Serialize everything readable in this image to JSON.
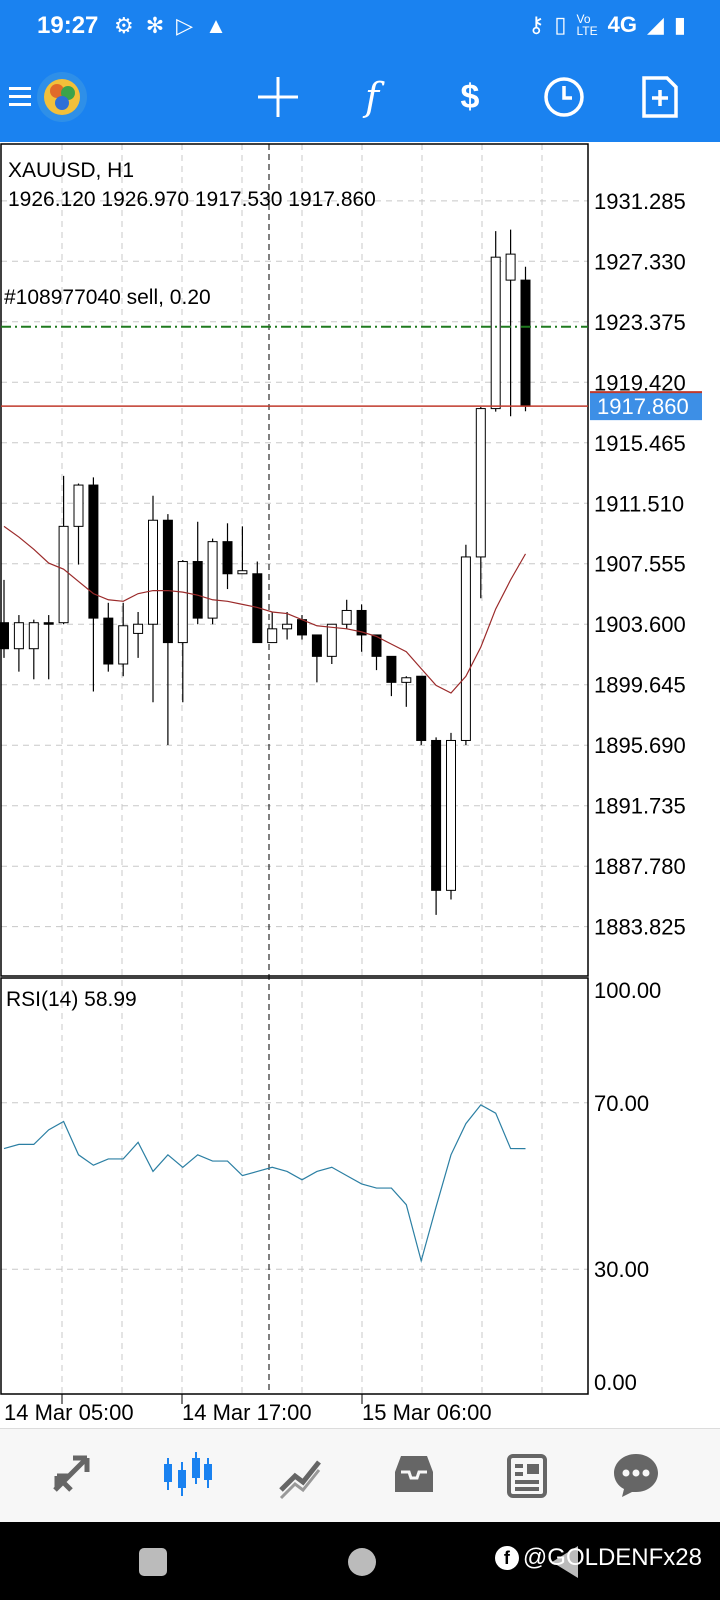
{
  "status_bar": {
    "time": "19:27",
    "network": "4G",
    "left_icons": [
      "gear-icon",
      "settings-icon",
      "play-icon",
      "warning-icon"
    ],
    "right_icons": [
      "key-icon",
      "vibrate-icon",
      "volte-icon",
      "signal-icon",
      "battery-icon"
    ]
  },
  "toolbar": {
    "icons": [
      "menu-icon",
      "app-logo-icon",
      "crosshair-icon",
      "indicators-icon",
      "trade-icon",
      "timeframe-icon",
      "new-order-icon"
    ]
  },
  "chart": {
    "symbol_label": "XAUUSD, H1",
    "ohlc_label": "1926.120 1926.970 1917.530 1917.860",
    "order_label": "#108977040 sell, 0.20",
    "current_price": "1917.860",
    "price_ticks": [
      "1931.285",
      "1927.330",
      "1923.375",
      "1919.420",
      "1915.465",
      "1911.510",
      "1907.555",
      "1903.600",
      "1899.645",
      "1895.690",
      "1891.735",
      "1887.780",
      "1883.825"
    ],
    "rsi_label": "RSI(14) 58.99",
    "rsi_ticks": [
      "100.00",
      "70.00",
      "30.00",
      "0.00"
    ],
    "time_labels": [
      "14 Mar 05:00",
      "14 Mar 17:00",
      "15 Mar 06:00"
    ],
    "colors": {
      "bull_fill": "#ffffff",
      "bear_fill": "#000000",
      "ma_line": "#9b2a2a",
      "rsi_line": "#2b7fa3",
      "order_line": "#1f7a1f",
      "bid_line": "#c0392b",
      "price_tag": "#3d8fe6",
      "grid": "#c8c8c8"
    }
  },
  "chart_data": [
    {
      "type": "candlestick",
      "title": "XAUUSD, H1",
      "ylim": [
        1880.6,
        1935.0
      ],
      "candles": [
        {
          "o": 1903.7,
          "h": 1906.5,
          "l": 1901.4,
          "c": 1902.0
        },
        {
          "o": 1902.0,
          "h": 1904.2,
          "l": 1900.5,
          "c": 1903.7
        },
        {
          "o": 1902.0,
          "h": 1903.9,
          "l": 1900.0,
          "c": 1903.7
        },
        {
          "o": 1903.7,
          "h": 1904.2,
          "l": 1900.0,
          "c": 1903.6
        },
        {
          "o": 1903.7,
          "h": 1913.3,
          "l": 1903.6,
          "c": 1910.0
        },
        {
          "o": 1910.0,
          "h": 1912.8,
          "l": 1907.5,
          "c": 1912.7
        },
        {
          "o": 1912.7,
          "h": 1913.2,
          "l": 1899.2,
          "c": 1904.0
        },
        {
          "o": 1904.0,
          "h": 1905.0,
          "l": 1900.5,
          "c": 1901.0
        },
        {
          "o": 1901.0,
          "h": 1905.0,
          "l": 1900.2,
          "c": 1903.5
        },
        {
          "o": 1903.0,
          "h": 1904.4,
          "l": 1901.4,
          "c": 1903.6
        },
        {
          "o": 1903.6,
          "h": 1912.0,
          "l": 1898.5,
          "c": 1910.4
        },
        {
          "o": 1910.4,
          "h": 1910.8,
          "l": 1895.7,
          "c": 1902.4
        },
        {
          "o": 1902.4,
          "h": 1907.8,
          "l": 1898.5,
          "c": 1907.7
        },
        {
          "o": 1907.7,
          "h": 1910.3,
          "l": 1903.6,
          "c": 1904.0
        },
        {
          "o": 1904.0,
          "h": 1909.2,
          "l": 1903.6,
          "c": 1909.0
        },
        {
          "o": 1909.0,
          "h": 1910.2,
          "l": 1905.9,
          "c": 1906.9
        },
        {
          "o": 1906.9,
          "h": 1910.0,
          "l": 1906.9,
          "c": 1907.1
        },
        {
          "o": 1906.9,
          "h": 1907.7,
          "l": 1902.4,
          "c": 1902.4
        },
        {
          "o": 1902.4,
          "h": 1904.4,
          "l": 1902.4,
          "c": 1903.3
        },
        {
          "o": 1903.3,
          "h": 1904.4,
          "l": 1902.6,
          "c": 1903.6
        },
        {
          "o": 1903.9,
          "h": 1904.2,
          "l": 1902.6,
          "c": 1902.9
        },
        {
          "o": 1902.9,
          "h": 1902.9,
          "l": 1899.8,
          "c": 1901.5
        },
        {
          "o": 1901.5,
          "h": 1903.6,
          "l": 1901.0,
          "c": 1903.6
        },
        {
          "o": 1903.6,
          "h": 1905.2,
          "l": 1903.3,
          "c": 1904.5
        },
        {
          "o": 1904.5,
          "h": 1904.9,
          "l": 1901.8,
          "c": 1902.9
        },
        {
          "o": 1902.9,
          "h": 1902.9,
          "l": 1900.6,
          "c": 1901.5
        },
        {
          "o": 1901.5,
          "h": 1901.5,
          "l": 1898.9,
          "c": 1899.8
        },
        {
          "o": 1899.8,
          "h": 1900.2,
          "l": 1898.2,
          "c": 1900.1
        },
        {
          "o": 1900.2,
          "h": 1900.2,
          "l": 1895.7,
          "c": 1896.0
        },
        {
          "o": 1896.0,
          "h": 1896.2,
          "l": 1884.6,
          "c": 1886.2
        },
        {
          "o": 1886.2,
          "h": 1896.5,
          "l": 1885.6,
          "c": 1896.0
        },
        {
          "o": 1896.0,
          "h": 1908.8,
          "l": 1895.7,
          "c": 1908.0
        },
        {
          "o": 1908.0,
          "h": 1917.8,
          "l": 1905.3,
          "c": 1917.7
        },
        {
          "o": 1917.7,
          "h": 1929.3,
          "l": 1917.5,
          "c": 1927.6
        },
        {
          "o": 1926.1,
          "h": 1929.4,
          "l": 1917.2,
          "c": 1927.8
        },
        {
          "o": 1926.1,
          "h": 1926.97,
          "l": 1917.53,
          "c": 1917.86
        }
      ],
      "ma": [
        1910.0,
        1909.3,
        1908.5,
        1907.6,
        1907.2,
        1906.4,
        1905.6,
        1905.2,
        1905.1,
        1905.6,
        1905.8,
        1905.8,
        1905.7,
        1905.5,
        1905.2,
        1905.1,
        1904.9,
        1904.7,
        1904.4,
        1904.3,
        1903.9,
        1903.5,
        1903.4,
        1903.3,
        1903.1,
        1902.8,
        1902.3,
        1901.8,
        1900.7,
        1899.6,
        1899.1,
        1900.2,
        1902.1,
        1904.6,
        1906.5,
        1908.2
      ]
    },
    {
      "type": "line",
      "title": "RSI(14) 58.99",
      "ylim": [
        0,
        100
      ],
      "values": [
        59.0,
        60.0,
        60.0,
        63.5,
        65.5,
        57.5,
        55.0,
        56.5,
        56.5,
        60.5,
        53.5,
        57.5,
        54.5,
        57.5,
        56.0,
        56.0,
        52.5,
        53.5,
        54.5,
        53.5,
        51.5,
        53.5,
        54.5,
        52.5,
        50.5,
        49.5,
        49.5,
        45.5,
        32.0,
        45.0,
        57.5,
        65.0,
        69.5,
        67.5,
        59.0,
        58.99
      ]
    }
  ],
  "bottom_nav": {
    "items": [
      "quotes-icon",
      "chart-icon",
      "trade-icon",
      "history-icon",
      "news-icon",
      "chat-icon"
    ],
    "active": "chart-icon"
  },
  "watermark": "@GOLDENFx28"
}
